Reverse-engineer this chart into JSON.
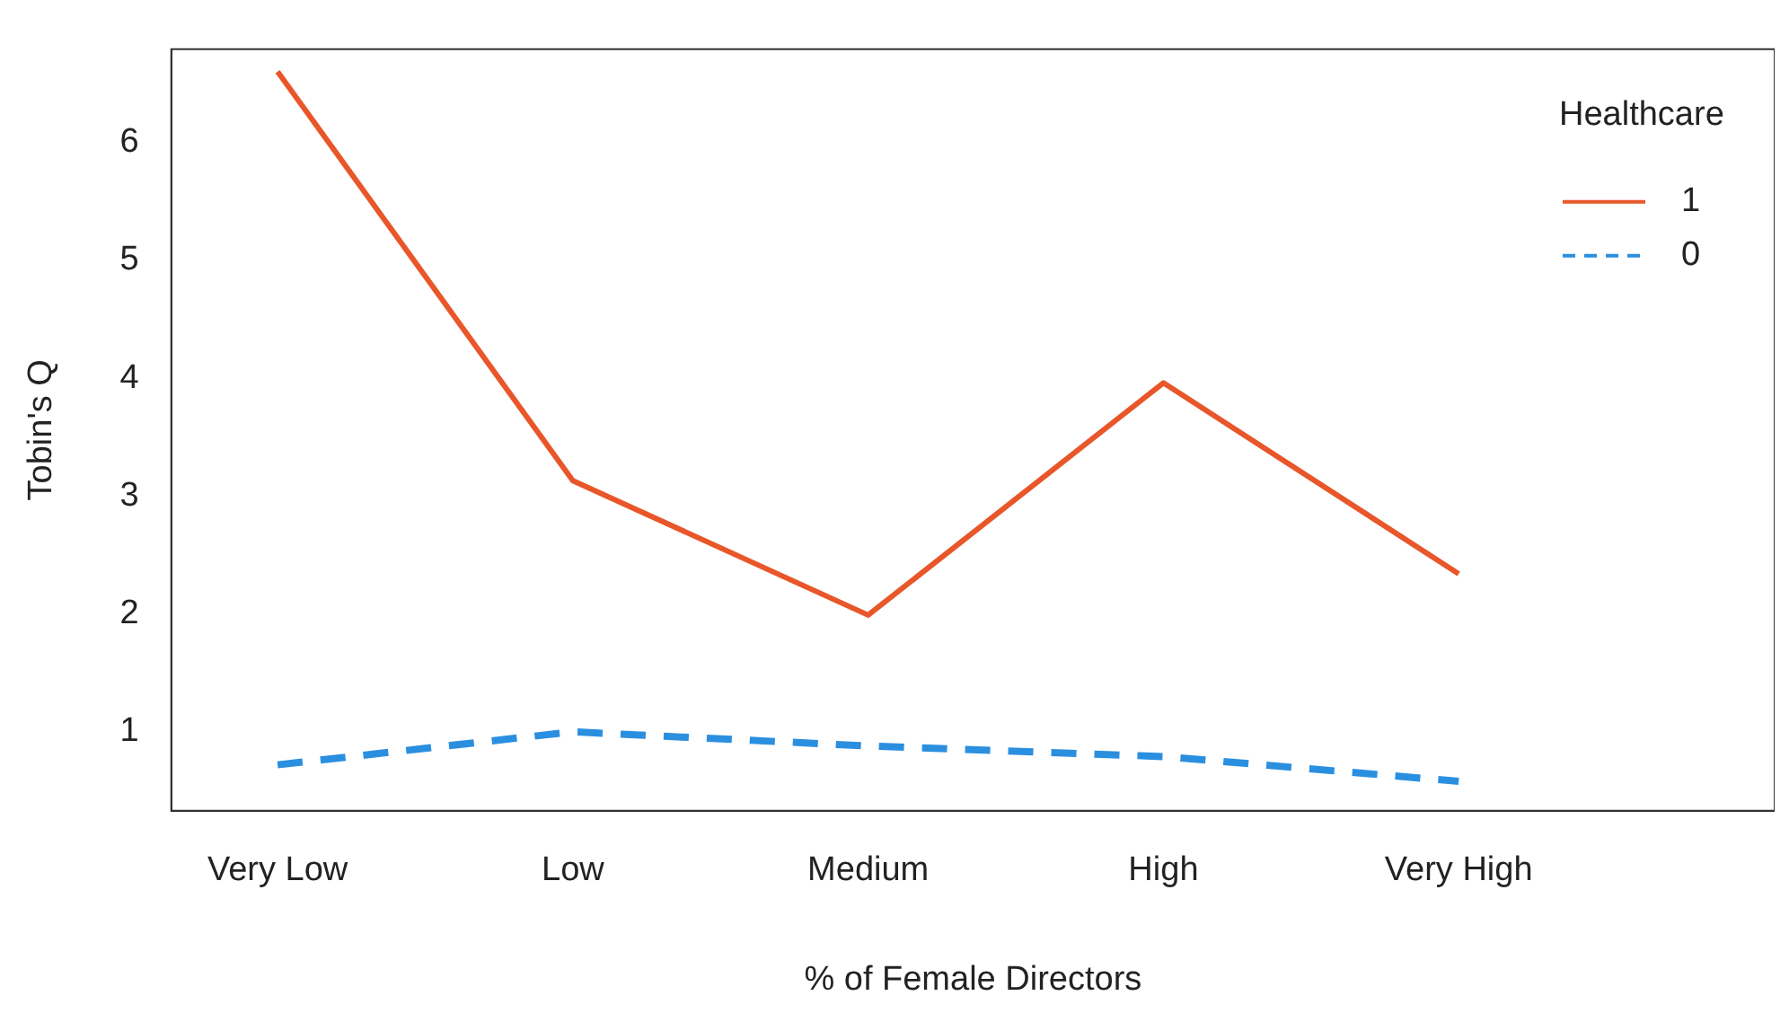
{
  "chart_data": {
    "type": "line",
    "xlabel": "% of Female Directors",
    "ylabel": "Tobin's Q",
    "legend_title": "Healthcare",
    "legend": "top right",
    "grid": false,
    "marker": "none",
    "categories": [
      "Very Low",
      "Low",
      "Medium",
      "High",
      "Very High"
    ],
    "ylim": [
      0.33,
      6.79
    ],
    "yticks": [
      1,
      2,
      3,
      4,
      5,
      6
    ],
    "series": [
      {
        "name": "1",
        "color": "#e8562a",
        "line_style": "solid",
        "values": [
          6.6,
          3.13,
          1.99,
          3.96,
          2.34
        ]
      },
      {
        "name": "0",
        "color": "#2b8fe0",
        "line_style": "dashed",
        "values": [
          0.72,
          1.0,
          0.88,
          0.79,
          0.58
        ]
      }
    ]
  }
}
